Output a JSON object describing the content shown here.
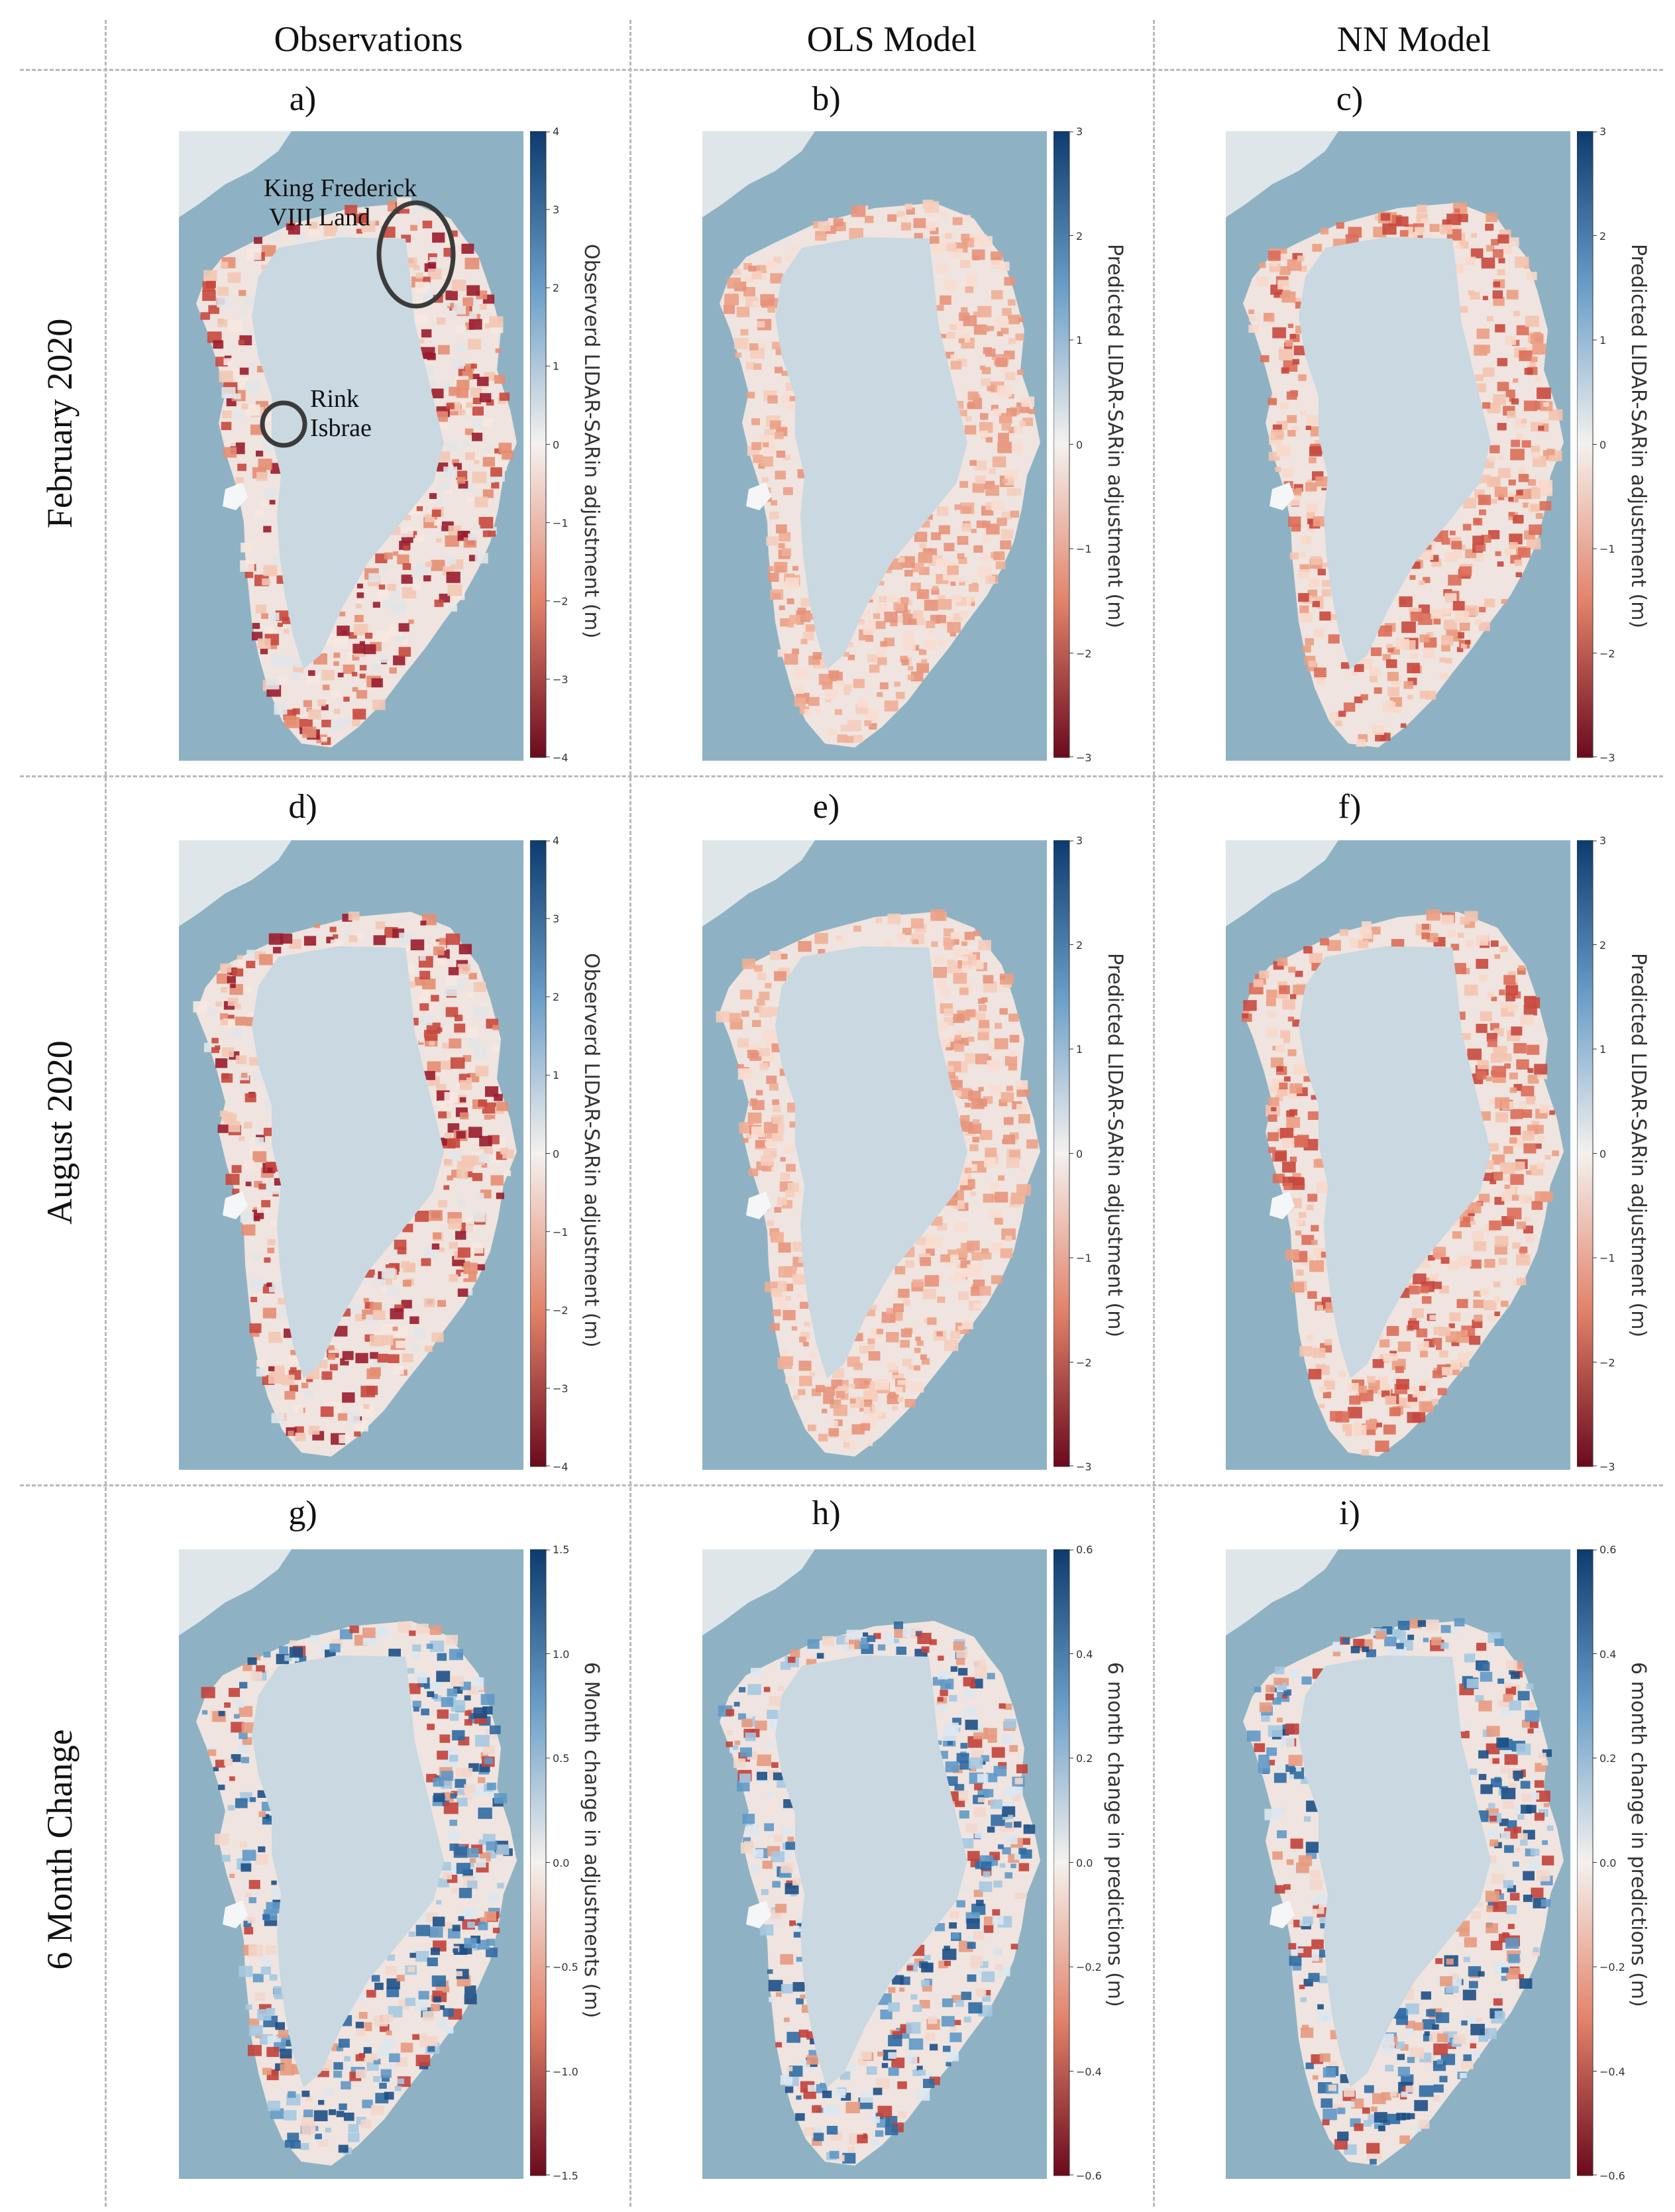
{
  "columns": [
    "Observations",
    "OLS Model",
    "NN Model"
  ],
  "rows": [
    "February 2020",
    "August 2020",
    "6 Month Change"
  ],
  "panels": [
    {
      "id": "a",
      "label": "a)",
      "colorbar_title": "Observerd LIDAR-SARin adjustment (m)",
      "ticks": [
        "4",
        "3",
        "2",
        "1",
        "0",
        "−1",
        "−2",
        "−3",
        "−4"
      ],
      "pattern": "obs"
    },
    {
      "id": "b",
      "label": "b)",
      "colorbar_title": "Predicted LIDAR-SARin adjustment (m)",
      "ticks": [
        "3",
        "2",
        "1",
        "0",
        "−1",
        "−2",
        "−3"
      ],
      "pattern": "ols"
    },
    {
      "id": "c",
      "label": "c)",
      "colorbar_title": "Predicted LIDAR-SARin adjustment (m)",
      "ticks": [
        "3",
        "2",
        "1",
        "0",
        "−1",
        "−2",
        "−3"
      ],
      "pattern": "nn"
    },
    {
      "id": "d",
      "label": "d)",
      "colorbar_title": "Observerd LIDAR-SARin adjustment (m)",
      "ticks": [
        "4",
        "3",
        "2",
        "1",
        "0",
        "−1",
        "−2",
        "−3",
        "−4"
      ],
      "pattern": "obs"
    },
    {
      "id": "e",
      "label": "e)",
      "colorbar_title": "Predicted LIDAR-SARin adjustment (m)",
      "ticks": [
        "3",
        "2",
        "1",
        "0",
        "−1",
        "−2",
        "−3"
      ],
      "pattern": "ols"
    },
    {
      "id": "f",
      "label": "f)",
      "colorbar_title": "Predicted LIDAR-SARin adjustment (m)",
      "ticks": [
        "3",
        "2",
        "1",
        "0",
        "−1",
        "−2",
        "−3"
      ],
      "pattern": "nn"
    },
    {
      "id": "g",
      "label": "g)",
      "colorbar_title": "6 Month change in adjustments (m)",
      "ticks": [
        "1.5",
        "1.0",
        "0.5",
        "0.0",
        "−0.5",
        "−1.0",
        "−1.5"
      ],
      "pattern": "chg"
    },
    {
      "id": "h",
      "label": "h)",
      "colorbar_title": "6 month change in predictions (m)",
      "ticks": [
        "0.6",
        "0.4",
        "0.2",
        "0.0",
        "−0.2",
        "−0.4",
        "−0.6"
      ],
      "pattern": "chg"
    },
    {
      "id": "i",
      "label": "i)",
      "colorbar_title": "6 month change in predictions (m)",
      "ticks": [
        "0.6",
        "0.4",
        "0.2",
        "0.0",
        "−0.2",
        "−0.4",
        "−0.6"
      ],
      "pattern": "chg"
    }
  ],
  "annotations": {
    "kfl_line1": "King Frederick",
    "kfl_line2": "VIII Land",
    "rink_line1": "Rink",
    "rink_line2": "Isbrae"
  },
  "colors": {
    "ocean": "#8eb2c4",
    "interior": "#c9d8e1",
    "diverging_high": "#0d3b6e",
    "diverging_mid": "#f4f1ee",
    "diverging_low": "#6b0a1d"
  }
}
